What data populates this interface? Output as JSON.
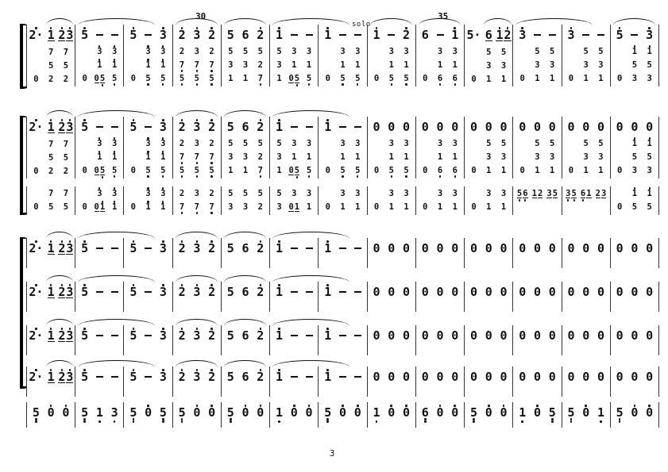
{
  "page": {
    "number": "3"
  },
  "labels": {
    "measure_30": "30",
    "solo": "solo",
    "measure_35": "35"
  },
  "score": {
    "notation_colors": {
      "ink": "#111111",
      "paper": "#ffffff"
    },
    "systems": [
      {
        "name": "system-1",
        "cls": [
          "sys-1"
        ],
        "arcs": [
          "r",
          "w",
          "",
          "f",
          "f",
          "w",
          "",
          "f",
          "f",
          "r",
          "w",
          "",
          "f"
        ],
        "rows": [
          {
            "size": "lg",
            "m": [
              [
                "2'.",
                "1'_",
                "2'_ 3'_"
              ],
              [
                "5'",
                "-",
                "-"
              ],
              [
                "5'",
                "-",
                "3'"
              ],
              [
                "2'",
                "3'",
                "2'"
              ],
              [
                "5",
                "6",
                "2'"
              ],
              [
                "1'",
                "-",
                "-"
              ],
              [
                "1'",
                "-",
                "-"
              ],
              [
                "1'",
                "-",
                "2'"
              ],
              [
                "6",
                "-",
                "1'"
              ],
              [
                "5.",
                "6_",
                "1'_ 2'_"
              ],
              [
                "3'",
                "-",
                "-"
              ],
              [
                "3'",
                "-",
                "-"
              ],
              [
                "5'",
                "-",
                "3'"
              ]
            ]
          },
          {
            "size": "sm",
            "m": [
              [
                "",
                "7",
                "7"
              ],
              [
                "",
                "3'",
                "3'"
              ],
              [
                "",
                "3'",
                "3'"
              ],
              [
                "2",
                "3",
                "2"
              ],
              [
                "5",
                "5",
                "5"
              ],
              [
                "5",
                "3",
                "3"
              ],
              [
                "",
                "3",
                "3"
              ],
              [
                "",
                "3",
                "3"
              ],
              [
                "",
                "3",
                "3"
              ],
              [
                "",
                "5",
                "5"
              ],
              [
                "",
                "5",
                "5"
              ],
              [
                "",
                "5",
                "5"
              ],
              [
                "",
                "1'",
                "1'"
              ]
            ]
          },
          {
            "size": "sm",
            "m": [
              [
                "",
                "5",
                "5"
              ],
              [
                "",
                "1'",
                "1'"
              ],
              [
                "",
                "1'",
                "1'"
              ],
              [
                "7,",
                "7,",
                "7,"
              ],
              [
                "3",
                "3",
                "2"
              ],
              [
                "3",
                "1",
                "1"
              ],
              [
                "",
                "1",
                "1"
              ],
              [
                "",
                "1",
                "1"
              ],
              [
                "",
                "1",
                "1"
              ],
              [
                "",
                "3",
                "3"
              ],
              [
                "",
                "3",
                "3"
              ],
              [
                "",
                "3",
                "3"
              ],
              [
                "",
                "5",
                "5"
              ]
            ]
          },
          {
            "size": "sm",
            "m": [
              [
                "0",
                "2",
                "2"
              ],
              [
                "0",
                "0_ 5_,",
                "5,"
              ],
              [
                "0",
                "5,",
                "5,"
              ],
              [
                "5,",
                "5,",
                "5,"
              ],
              [
                "1",
                "1",
                "7,"
              ],
              [
                "1",
                "0_ 5_,",
                "5,"
              ],
              [
                "0",
                "5,",
                "5,"
              ],
              [
                "0",
                "5,",
                "5,"
              ],
              [
                "0",
                "6,",
                "6,"
              ],
              [
                "0",
                "1",
                "1"
              ],
              [
                "0",
                "1",
                "1"
              ],
              [
                "0",
                "1",
                "1"
              ],
              [
                "0",
                "3",
                "3"
              ]
            ]
          }
        ]
      },
      {
        "name": "system-2",
        "cls": [
          "sys-2"
        ],
        "arcs": [
          "r",
          "w",
          "",
          "f",
          "f",
          "w",
          "",
          "",
          "",
          "",
          "",
          "",
          ""
        ],
        "rows": [
          {
            "size": "lg",
            "m": [
              [
                "2'.",
                "1'_",
                "2'_ 3'_"
              ],
              [
                "5'",
                "-",
                "-"
              ],
              [
                "5'",
                "-",
                "3'"
              ],
              [
                "2'",
                "3'",
                "2'"
              ],
              [
                "5",
                "6",
                "2'"
              ],
              [
                "1'",
                "-",
                "-"
              ],
              [
                "1'",
                "-",
                "-"
              ],
              [
                "0",
                "0",
                "0"
              ],
              [
                "0",
                "0",
                "0"
              ],
              [
                "0",
                "0",
                "0"
              ],
              [
                "0",
                "0",
                "0"
              ],
              [
                "0",
                "0",
                "0"
              ],
              [
                "0",
                "0",
                "0"
              ]
            ]
          },
          {
            "size": "sm",
            "m": [
              [
                "",
                "7",
                "7"
              ],
              [
                "",
                "3'",
                "3'"
              ],
              [
                "",
                "3'",
                "3'"
              ],
              [
                "2",
                "3",
                "2"
              ],
              [
                "5",
                "5",
                "5"
              ],
              [
                "5",
                "3",
                "3"
              ],
              [
                "",
                "3",
                "3"
              ],
              [
                "",
                "3",
                "3"
              ],
              [
                "",
                "3",
                "3"
              ],
              [
                "",
                "5",
                "5"
              ],
              [
                "",
                "5",
                "5"
              ],
              [
                "",
                "5",
                "5"
              ],
              [
                "",
                "1'",
                "1'"
              ]
            ]
          },
          {
            "size": "sm",
            "m": [
              [
                "",
                "5",
                "5"
              ],
              [
                "",
                "1'",
                "1'"
              ],
              [
                "",
                "1'",
                "1'"
              ],
              [
                "7,",
                "7,",
                "7,"
              ],
              [
                "3",
                "3",
                "2"
              ],
              [
                "3",
                "1",
                "1"
              ],
              [
                "",
                "1",
                "1"
              ],
              [
                "",
                "1",
                "1"
              ],
              [
                "",
                "1",
                "1"
              ],
              [
                "",
                "3",
                "3"
              ],
              [
                "",
                "3",
                "3"
              ],
              [
                "",
                "3",
                "3"
              ],
              [
                "",
                "5",
                "5"
              ]
            ]
          },
          {
            "size": "sm",
            "m": [
              [
                "0",
                "2",
                "2"
              ],
              [
                "0",
                "0_ 5_,",
                "5,"
              ],
              [
                "0",
                "5,",
                "5,"
              ],
              [
                "5,",
                "5,",
                "5,"
              ],
              [
                "1",
                "1",
                "7,"
              ],
              [
                "1",
                "0_ 5_,",
                "5,"
              ],
              [
                "0",
                "5,",
                "5,"
              ],
              [
                "0",
                "5,",
                "5,"
              ],
              [
                "0",
                "6,",
                "6,"
              ],
              [
                "0",
                "1",
                "1"
              ],
              [
                "0",
                "1",
                "1"
              ],
              [
                "0",
                "1",
                "1"
              ],
              [
                "0",
                "3",
                "3"
              ]
            ]
          }
        ]
      },
      {
        "name": "counter-line",
        "cls": [
          "sys-3"
        ],
        "arcs": [
          "",
          "",
          "",
          "",
          "",
          "",
          "",
          "",
          "",
          "",
          "",
          "",
          ""
        ],
        "rows": [
          {
            "size": "sm",
            "m": [
              [
                "",
                "7",
                "7"
              ],
              [
                "",
                "3'",
                "3'"
              ],
              [
                "",
                "3'",
                "3'"
              ],
              [
                "2",
                "3",
                "2"
              ],
              [
                "5",
                "5",
                "5"
              ],
              [
                "5",
                "3",
                "3"
              ],
              [
                "",
                "3",
                "3"
              ],
              [
                "",
                "3",
                "3"
              ],
              [
                "",
                "3",
                "3"
              ],
              [
                "",
                "3",
                "3"
              ],
              [
                "",
                "",
                ""
              ],
              [
                "",
                "",
                ""
              ],
              [
                "",
                "1'",
                "1'"
              ]
            ]
          },
          {
            "size": "sm",
            "m": [
              [
                "0",
                "5",
                "5"
              ],
              [
                "0",
                "0_ 1'_",
                "1'"
              ],
              [
                "0",
                "1'",
                "1'"
              ],
              [
                "7,",
                "7,",
                "7,"
              ],
              [
                "3",
                "3",
                "2"
              ],
              [
                "3",
                "0_ 1_",
                "1"
              ],
              [
                "0",
                "1",
                "1"
              ],
              [
                "0",
                "1",
                "1"
              ],
              [
                "0",
                "1",
                "1"
              ],
              [
                "0",
                "1",
                "1"
              ],
              [
                "5_, 6_,",
                "1_ 2_",
                "3_ 5_"
              ],
              [
                "3_, 5_,",
                "6_, 1_",
                "2_ 3_"
              ],
              [
                "0",
                "5",
                "5"
              ]
            ]
          }
        ]
      },
      {
        "name": "unison-line",
        "cls": [
          "sys-l4 tall",
          "sys-l5 tall",
          "sys-l6 tall",
          "sys-l7 tall"
        ],
        "arcs": [
          "r",
          "w",
          "",
          "f",
          "f",
          "w",
          "",
          "",
          "",
          "",
          "",
          "",
          ""
        ],
        "rows": [
          {
            "size": "lg",
            "m": [
              [
                "2'.",
                "1'_",
                "2'_ 3'_"
              ],
              [
                "5'",
                "-",
                "-"
              ],
              [
                "5'",
                "-",
                "3'"
              ],
              [
                "2'",
                "3'",
                "2'"
              ],
              [
                "5",
                "6",
                "2'"
              ],
              [
                "1'",
                "-",
                "-"
              ],
              [
                "1'",
                "-",
                "-"
              ],
              [
                "0",
                "0",
                "0"
              ],
              [
                "0",
                "0",
                "0"
              ],
              [
                "0",
                "0",
                "0"
              ],
              [
                "0",
                "0",
                "0"
              ],
              [
                "0",
                "0",
                "0"
              ],
              [
                "0",
                "0",
                "0"
              ]
            ]
          }
        ]
      },
      {
        "name": "bass-line",
        "cls": [
          "sys-bass tallb"
        ],
        "arcs": [
          "",
          "",
          "",
          "",
          "",
          "",
          "",
          "",
          "",
          "",
          "",
          "",
          ""
        ],
        "rows": [
          {
            "size": "lg",
            "m": [
              [
                "5,,",
                "0'",
                "0'"
              ],
              [
                "5,,",
                "1,",
                "3,"
              ],
              [
                "5,,",
                "0'",
                "5,,"
              ],
              [
                "5,,",
                "0'",
                "0'"
              ],
              [
                "5,,",
                "0'",
                "0'"
              ],
              [
                "1,",
                "0'",
                "0'"
              ],
              [
                "5,,",
                "0'",
                "0'"
              ],
              [
                "1,",
                "0'",
                "0'"
              ],
              [
                "6,,",
                "0'",
                "0'"
              ],
              [
                "5,,",
                "0'",
                "0'"
              ],
              [
                "1,",
                "0'",
                "5,,"
              ],
              [
                "5,,",
                "0'",
                "1,"
              ],
              [
                "5,,",
                "0'",
                "0'"
              ]
            ]
          }
        ]
      }
    ]
  }
}
